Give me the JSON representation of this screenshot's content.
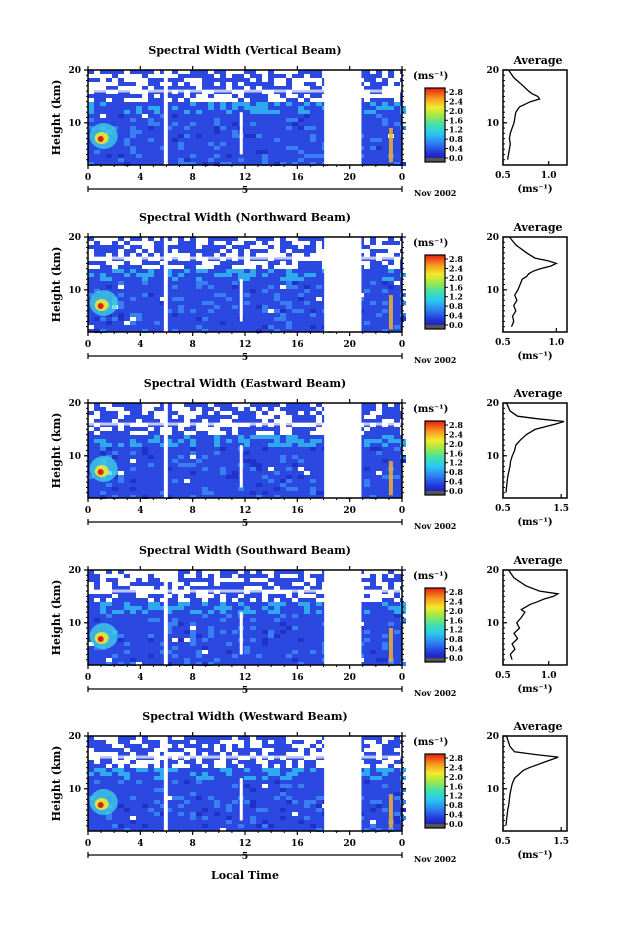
{
  "xlabel": "Local Time",
  "date_label": "Nov 2002",
  "day_label": "5",
  "chart_data": [
    {
      "type": "heatmap",
      "title": "Spectral Width (Vertical Beam)",
      "ylabel": "Height (km)",
      "x_ticks": [
        "0",
        "4",
        "8",
        "12",
        "16",
        "20",
        "0"
      ],
      "y_ticks": [
        "10",
        "20"
      ],
      "xlim": [
        0,
        24
      ],
      "ylim": [
        2,
        20
      ],
      "colorbar": {
        "unit": "(ms⁻¹)",
        "ticks": [
          "0.0",
          "0.4",
          "0.8",
          "1.2",
          "1.6",
          "2.0",
          "2.4",
          "2.8"
        ]
      }
    },
    {
      "type": "heatmap",
      "title": "Spectral Width (Northward Beam)",
      "ylabel": "Height (km)",
      "x_ticks": [
        "0",
        "4",
        "8",
        "12",
        "16",
        "20",
        "0"
      ],
      "y_ticks": [
        "10",
        "20"
      ],
      "xlim": [
        0,
        24
      ],
      "ylim": [
        2,
        20
      ],
      "colorbar": {
        "unit": "(ms⁻¹)",
        "ticks": [
          "0.0",
          "0.4",
          "0.8",
          "1.2",
          "1.6",
          "2.0",
          "2.4",
          "2.8"
        ]
      }
    },
    {
      "type": "heatmap",
      "title": "Spectral Width (Eastward Beam)",
      "ylabel": "Height (km)",
      "x_ticks": [
        "0",
        "4",
        "8",
        "12",
        "16",
        "20",
        "0"
      ],
      "y_ticks": [
        "10",
        "20"
      ],
      "xlim": [
        0,
        24
      ],
      "ylim": [
        2,
        20
      ],
      "colorbar": {
        "unit": "(ms⁻¹)",
        "ticks": [
          "0.0",
          "0.4",
          "0.8",
          "1.2",
          "1.6",
          "2.0",
          "2.4",
          "2.8"
        ]
      }
    },
    {
      "type": "heatmap",
      "title": "Spectral Width (Southward Beam)",
      "ylabel": "Height (km)",
      "x_ticks": [
        "0",
        "4",
        "8",
        "12",
        "16",
        "20",
        "0"
      ],
      "y_ticks": [
        "10",
        "20"
      ],
      "xlim": [
        0,
        24
      ],
      "ylim": [
        2,
        20
      ],
      "colorbar": {
        "unit": "(ms⁻¹)",
        "ticks": [
          "0.0",
          "0.4",
          "0.8",
          "1.2",
          "1.6",
          "2.0",
          "2.4",
          "2.8"
        ]
      }
    },
    {
      "type": "heatmap",
      "title": "Spectral Width (Westward Beam)",
      "ylabel": "Height (km)",
      "x_ticks": [
        "0",
        "4",
        "8",
        "12",
        "16",
        "20",
        "0"
      ],
      "y_ticks": [
        "10",
        "20"
      ],
      "xlim": [
        0,
        24
      ],
      "ylim": [
        2,
        20
      ],
      "colorbar": {
        "unit": "(ms⁻¹)",
        "ticks": [
          "0.0",
          "0.4",
          "0.8",
          "1.2",
          "1.6",
          "2.0",
          "2.4",
          "2.8"
        ]
      }
    },
    {
      "type": "line",
      "title": "Average",
      "xlabel": "(ms⁻¹)",
      "x_ticks": [
        "0.5",
        "1.0"
      ],
      "y_ticks": [
        "10",
        "20"
      ],
      "xlim": [
        0.5,
        1.2
      ],
      "ylim": [
        2,
        20
      ],
      "series": [
        {
          "x": [
            0.55,
            0.56,
            0.57,
            0.58,
            0.57,
            0.58,
            0.6,
            0.62,
            0.63,
            0.64,
            0.66,
            0.68,
            0.74,
            0.8,
            0.9,
            0.88,
            0.82,
            0.78,
            0.72,
            0.62,
            0.56
          ],
          "y": [
            3,
            4,
            5,
            6,
            7,
            8,
            9,
            10,
            11,
            12,
            12.5,
            13,
            13.5,
            14,
            14.5,
            15,
            15.5,
            16,
            17,
            18.5,
            20
          ]
        }
      ]
    },
    {
      "type": "line",
      "title": "Average",
      "xlabel": "(ms⁻¹)",
      "x_ticks": [
        "0.5",
        "1.0"
      ],
      "y_ticks": [
        "10",
        "20"
      ],
      "xlim": [
        0.5,
        1.1
      ],
      "ylim": [
        2,
        20
      ],
      "series": [
        {
          "x": [
            0.58,
            0.6,
            0.59,
            0.62,
            0.6,
            0.63,
            0.61,
            0.64,
            0.66,
            0.68,
            0.72,
            0.74,
            0.78,
            0.85,
            0.95,
            1.0,
            0.92,
            0.8,
            0.72,
            0.62,
            0.56
          ],
          "y": [
            3,
            4,
            5,
            6,
            7,
            8,
            9,
            10,
            11,
            12,
            12.5,
            13,
            13.5,
            14,
            14.5,
            15,
            15.5,
            16,
            17,
            18.5,
            20
          ]
        }
      ]
    },
    {
      "type": "line",
      "title": "Average",
      "xlabel": "(ms⁻¹)",
      "x_ticks": [
        "0.5",
        "1.5"
      ],
      "y_ticks": [
        "10",
        "20"
      ],
      "xlim": [
        0.5,
        1.6
      ],
      "ylim": [
        2,
        20
      ],
      "series": [
        {
          "x": [
            0.55,
            0.56,
            0.57,
            0.58,
            0.6,
            0.62,
            0.63,
            0.66,
            0.7,
            0.72,
            0.76,
            0.8,
            0.85,
            0.9,
            1.05,
            1.4,
            1.55,
            1.1,
            0.75,
            0.62,
            0.56
          ],
          "y": [
            3,
            4,
            5,
            6,
            7,
            8,
            9,
            10,
            11,
            12,
            12.5,
            13,
            13.5,
            14,
            15,
            16,
            16.5,
            17,
            17.5,
            18.5,
            20
          ]
        }
      ]
    },
    {
      "type": "line",
      "title": "Average",
      "xlabel": "(ms⁻¹)",
      "x_ticks": [
        "0.5",
        "1.0"
      ],
      "y_ticks": [
        "10",
        "20"
      ],
      "xlim": [
        0.5,
        1.2
      ],
      "ylim": [
        2,
        20
      ],
      "series": [
        {
          "x": [
            0.6,
            0.58,
            0.63,
            0.6,
            0.66,
            0.62,
            0.68,
            0.65,
            0.7,
            0.74,
            0.7,
            0.75,
            0.8,
            0.88,
            0.95,
            1.05,
            1.1,
            0.9,
            0.75,
            0.62,
            0.56
          ],
          "y": [
            3,
            4,
            5,
            6,
            7,
            8,
            9,
            10,
            11,
            12,
            12.5,
            13,
            13.5,
            14,
            14.5,
            15,
            15.5,
            16,
            17,
            18.5,
            20
          ]
        }
      ]
    },
    {
      "type": "line",
      "title": "Average",
      "xlabel": "(ms⁻¹)",
      "x_ticks": [
        "0.5",
        "1.5"
      ],
      "y_ticks": [
        "10",
        "20"
      ],
      "xlim": [
        0.5,
        1.6
      ],
      "ylim": [
        2,
        20
      ],
      "series": [
        {
          "x": [
            0.55,
            0.56,
            0.57,
            0.58,
            0.6,
            0.61,
            0.62,
            0.64,
            0.66,
            0.7,
            0.75,
            0.8,
            0.85,
            0.95,
            1.2,
            1.45,
            1.05,
            0.7,
            0.62,
            0.56
          ],
          "y": [
            3,
            4,
            5,
            6,
            7,
            8,
            9,
            10,
            11,
            12,
            12.5,
            13,
            13.5,
            14,
            15,
            16,
            16.5,
            17,
            18,
            20
          ]
        }
      ]
    }
  ]
}
